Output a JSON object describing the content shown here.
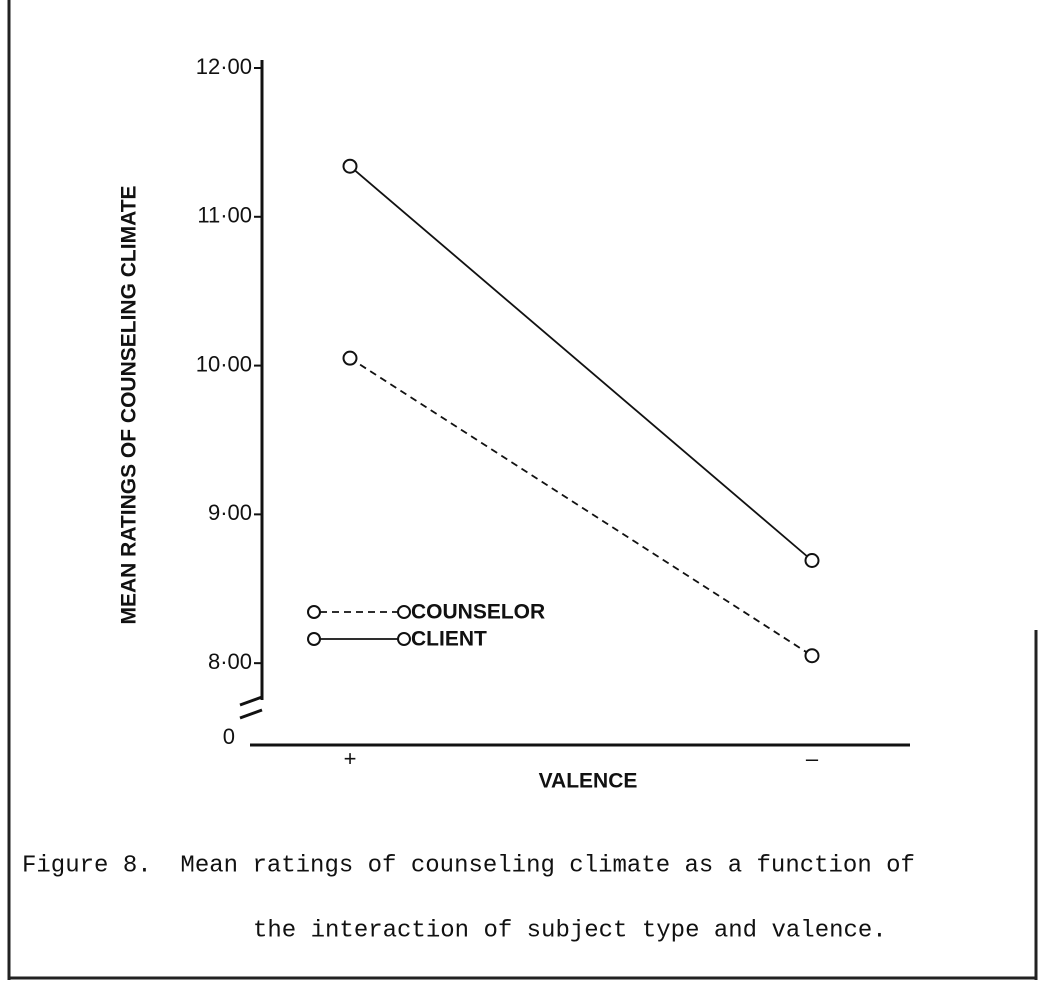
{
  "chart_data": {
    "type": "line",
    "y_label": "MEAN RATINGS OF COUNSELING CLIMATE",
    "x_label": "VALENCE",
    "categories": [
      "+",
      "–"
    ],
    "series": [
      {
        "name": "COUNSELOR",
        "color": "#111111",
        "dash": true,
        "values": [
          10.05,
          8.05
        ]
      },
      {
        "name": "CLIENT",
        "color": "#111111",
        "dash": false,
        "values": [
          11.34,
          8.69
        ]
      }
    ],
    "ylim": [
      7.45,
      12
    ],
    "yticks": [
      {
        "value": 8,
        "label": "8·00"
      },
      {
        "value": 9,
        "label": "9·00"
      },
      {
        "value": 10,
        "label": "10·00"
      },
      {
        "value": 11,
        "label": "11·00"
      },
      {
        "value": 12,
        "label": "12·00"
      }
    ],
    "y_break_label": "0",
    "caption": [
      "Figure 8.  Mean ratings of counseling climate as a function of",
      "the interaction of subject type and valence."
    ]
  }
}
